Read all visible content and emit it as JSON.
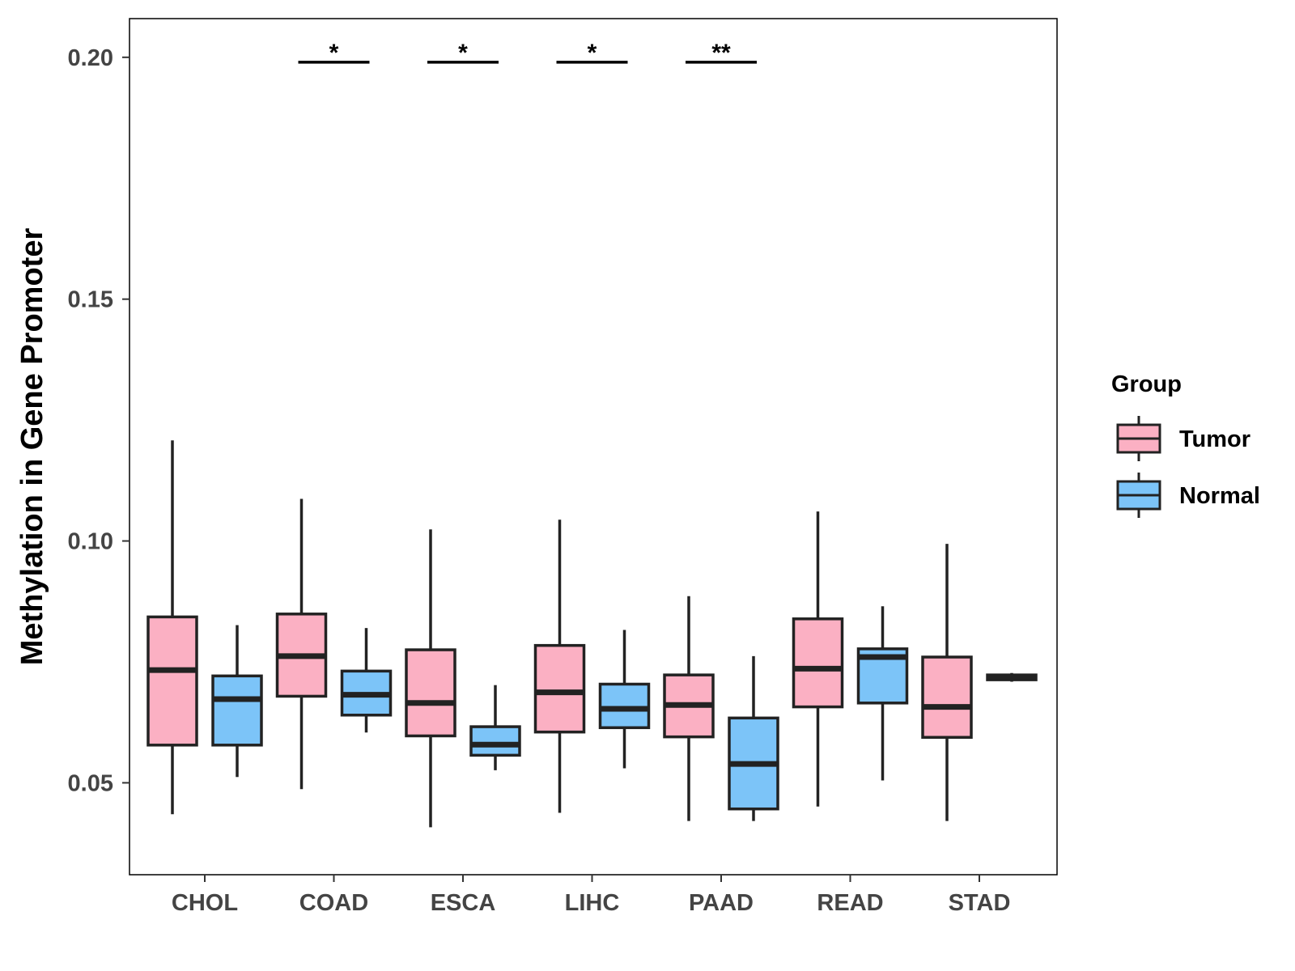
{
  "chart_data": {
    "type": "boxplot",
    "title": "",
    "xlabel": "",
    "ylabel": "Methylation in Gene Promoter",
    "ylim": [
      0.031,
      0.208
    ],
    "yticks": [
      0.05,
      0.1,
      0.15,
      0.2
    ],
    "ytick_labels": [
      "0.05",
      "0.10",
      "0.15",
      "0.20"
    ],
    "categories": [
      "CHOL",
      "COAD",
      "ESCA",
      "LIHC",
      "PAAD",
      "READ",
      "STAD"
    ],
    "legend": {
      "title": "Group",
      "position": "right",
      "entries": [
        {
          "name": "Tumor",
          "color": "#FBB0C3"
        },
        {
          "name": "Normal",
          "color": "#7CC4F8"
        }
      ]
    },
    "series": [
      {
        "name": "Tumor",
        "color": "#FBB0C3",
        "boxes": [
          {
            "category": "CHOL",
            "min": 0.0435,
            "q1": 0.0578,
            "median": 0.0733,
            "q3": 0.0843,
            "max": 0.1208
          },
          {
            "category": "COAD",
            "min": 0.0487,
            "q1": 0.0679,
            "median": 0.0762,
            "q3": 0.0849,
            "max": 0.1087
          },
          {
            "category": "ESCA",
            "min": 0.0408,
            "q1": 0.0597,
            "median": 0.0665,
            "q3": 0.0775,
            "max": 0.1024
          },
          {
            "category": "LIHC",
            "min": 0.0438,
            "q1": 0.0605,
            "median": 0.0687,
            "q3": 0.0784,
            "max": 0.1044
          },
          {
            "category": "PAAD",
            "min": 0.0421,
            "q1": 0.0595,
            "median": 0.0661,
            "q3": 0.0723,
            "max": 0.0886
          },
          {
            "category": "READ",
            "min": 0.0451,
            "q1": 0.0657,
            "median": 0.0736,
            "q3": 0.0839,
            "max": 0.1061
          },
          {
            "category": "STAD",
            "min": 0.0421,
            "q1": 0.0594,
            "median": 0.0657,
            "q3": 0.076,
            "max": 0.0994
          }
        ]
      },
      {
        "name": "Normal",
        "color": "#7CC4F8",
        "boxes": [
          {
            "category": "CHOL",
            "min": 0.0512,
            "q1": 0.0578,
            "median": 0.0673,
            "q3": 0.0721,
            "max": 0.0826
          },
          {
            "category": "COAD",
            "min": 0.0604,
            "q1": 0.064,
            "median": 0.0682,
            "q3": 0.0731,
            "max": 0.082
          },
          {
            "category": "ESCA",
            "min": 0.0526,
            "q1": 0.0557,
            "median": 0.0579,
            "q3": 0.0616,
            "max": 0.0702
          },
          {
            "category": "LIHC",
            "min": 0.053,
            "q1": 0.0614,
            "median": 0.0653,
            "q3": 0.0704,
            "max": 0.0816
          },
          {
            "category": "PAAD",
            "min": 0.0421,
            "q1": 0.0446,
            "median": 0.0539,
            "q3": 0.0634,
            "max": 0.0762
          },
          {
            "category": "READ",
            "min": 0.0505,
            "q1": 0.0665,
            "median": 0.076,
            "q3": 0.0777,
            "max": 0.0865
          },
          {
            "category": "STAD",
            "min": 0.0709,
            "q1": 0.0713,
            "median": 0.0718,
            "q3": 0.0723,
            "max": 0.0727
          }
        ]
      }
    ],
    "significance": [
      {
        "category": "COAD",
        "label": "*",
        "y": 0.2
      },
      {
        "category": "ESCA",
        "label": "*",
        "y": 0.2
      },
      {
        "category": "LIHC",
        "label": "*",
        "y": 0.2
      },
      {
        "category": "PAAD",
        "label": "**",
        "y": 0.2
      }
    ]
  }
}
